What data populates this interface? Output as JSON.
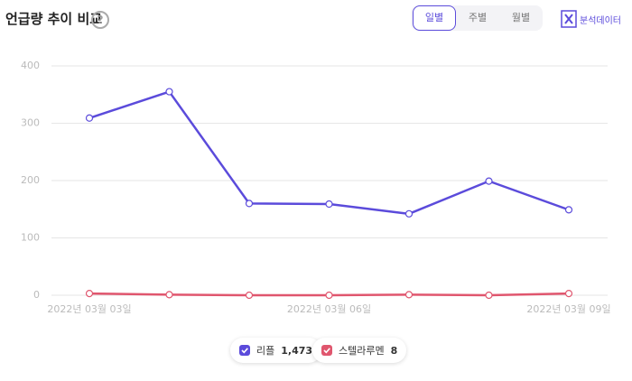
{
  "header": {
    "title": "언급량 추이 비교",
    "help": "?"
  },
  "tabs": [
    "일별",
    "주별",
    "월별"
  ],
  "selected_tab": 0,
  "export_label": "분석데이터",
  "chart_data": {
    "type": "line",
    "categories": [
      "2022년 03월 03일",
      null,
      null,
      "2022년 03월 06일",
      null,
      null,
      "2022년 03월 09일"
    ],
    "series": [
      {
        "name": "리플",
        "color": "#5b4bdb",
        "values": [
          309,
          355,
          160,
          159,
          142,
          199,
          149
        ],
        "total": {
          "value": 1473,
          "label": "1,473"
        }
      },
      {
        "name": "스텔라루멘",
        "color": "#e0566e",
        "values": [
          3,
          1,
          0,
          0,
          1,
          0,
          3
        ],
        "total": 8
      }
    ],
    "ylim": [
      0,
      400
    ],
    "yticks": [
      0,
      100,
      200,
      300,
      400
    ],
    "grid": true
  }
}
